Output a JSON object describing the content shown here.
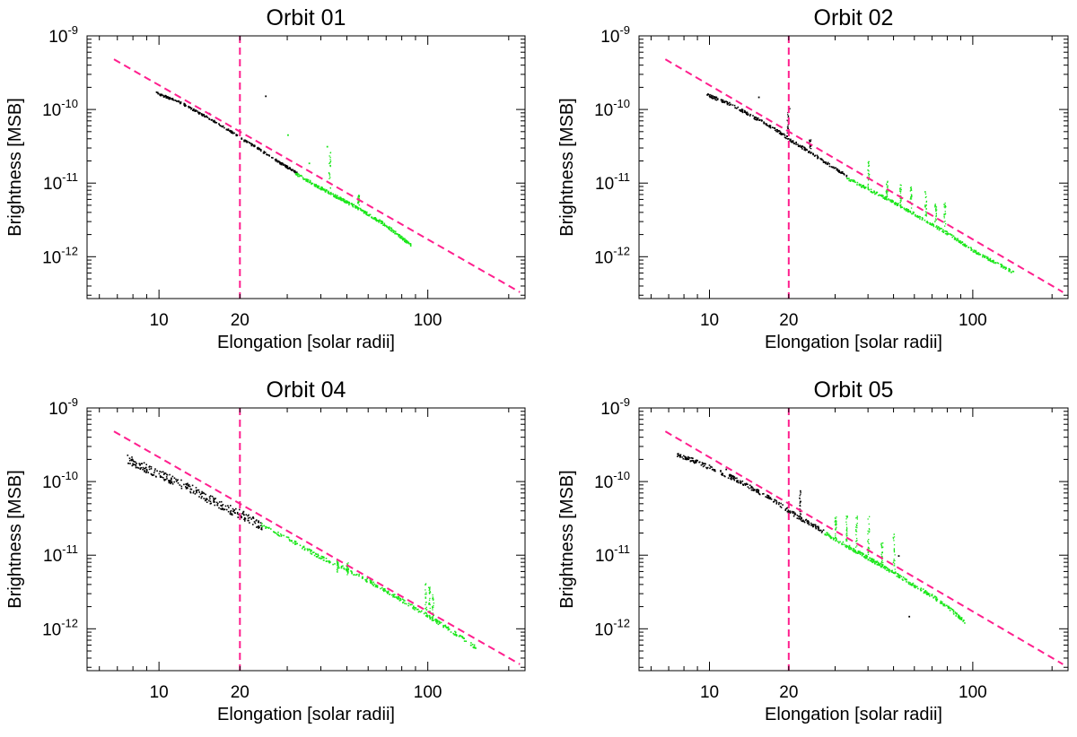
{
  "colors": {
    "fit": "#ff1f8e",
    "inner": "#000000",
    "outer": "#19e619",
    "axis": "#000000"
  },
  "common": {
    "ylabel": "Brightness [MSB]",
    "xlabel": "Elongation [solar radii]",
    "x_tick_labels": [
      "10",
      "20",
      "100"
    ],
    "y_tick_exponents": [
      "-9",
      "-10",
      "-11",
      "-12"
    ]
  },
  "chart_data": [
    {
      "type": "scatter",
      "title": "Orbit 01",
      "xlabel": "Elongation [solar radii]",
      "ylabel": "Brightness [MSB]",
      "xscale": "log",
      "yscale": "log",
      "xlim": [
        5.4,
        230
      ],
      "ylim": [
        2.7e-13,
        1e-09
      ],
      "x_ticks": [
        10,
        20,
        100
      ],
      "y_ticks": [
        1e-09,
        1e-10,
        1e-11,
        1e-12
      ],
      "fit_line": {
        "style": "dashed",
        "x": [
          6.8,
          220
        ],
        "y": [
          4.8e-10,
          3.3e-13
        ]
      },
      "threshold_x": 20,
      "series": [
        {
          "name": "inner",
          "color": "black",
          "x": [
            9.7,
            12,
            15,
            18,
            20,
            24,
            28,
            32.5
          ],
          "y": [
            1.78e-10,
            1.3e-10,
            8.3e-11,
            5.6e-11,
            4.3e-11,
            2.9e-11,
            2e-11,
            1.45e-11
          ],
          "spread": 0.03
        },
        {
          "name": "outer",
          "color": "green",
          "x": [
            32,
            40,
            50,
            60,
            70,
            80,
            87
          ],
          "y": [
            1.45e-11,
            9e-12,
            5.8e-12,
            4e-12,
            2.8e-12,
            1.9e-12,
            1.5e-12
          ],
          "spread": 0.04
        }
      ],
      "outliers": [
        {
          "x": 24.8,
          "y": 1.55e-10,
          "color": "black"
        },
        {
          "x": 15.3,
          "y": 9e-11,
          "color": "black"
        },
        {
          "x": 42,
          "y": 3.2e-11,
          "color": "green"
        },
        {
          "x": 36,
          "y": 1.9e-11,
          "color": "green"
        },
        {
          "x": 30,
          "y": 4.6e-11,
          "color": "green"
        }
      ],
      "spikes": [
        {
          "x": 43,
          "y_low": 8.5e-12,
          "y_high": 3e-11,
          "color": "green"
        },
        {
          "x": 55,
          "y_low": 5e-12,
          "y_high": 7e-12,
          "color": "green"
        }
      ]
    },
    {
      "type": "scatter",
      "title": "Orbit 02",
      "xlabel": "Elongation [solar radii]",
      "ylabel": "Brightness [MSB]",
      "xscale": "log",
      "yscale": "log",
      "xlim": [
        5.4,
        230
      ],
      "ylim": [
        2.7e-13,
        1e-09
      ],
      "x_ticks": [
        10,
        20,
        100
      ],
      "y_ticks": [
        1e-09,
        1e-10,
        1e-11,
        1e-12
      ],
      "fit_line": {
        "style": "dashed",
        "x": [
          6.8,
          220
        ],
        "y": [
          4.8e-10,
          3.3e-13
        ]
      },
      "threshold_x": 20,
      "series": [
        {
          "name": "inner",
          "color": "black",
          "x": [
            9.7,
            12,
            15,
            18,
            20,
            24,
            28,
            33
          ],
          "y": [
            1.7e-10,
            1.25e-10,
            8e-11,
            5.5e-11,
            4.2e-11,
            2.8e-11,
            1.95e-11,
            1.35e-11
          ],
          "spread": 0.04
        },
        {
          "name": "outer",
          "color": "green",
          "x": [
            33,
            40,
            50,
            60,
            70,
            80,
            100,
            120,
            143
          ],
          "y": [
            1.25e-11,
            8.8e-12,
            5.8e-12,
            4e-12,
            2.9e-12,
            2.2e-12,
            1.3e-12,
            9e-13,
            6.5e-13
          ],
          "spread": 0.04
        }
      ],
      "outliers": [
        {
          "x": 15.3,
          "y": 1.5e-10,
          "color": "black"
        },
        {
          "x": 20,
          "y": 1.05e-10,
          "color": "black"
        }
      ],
      "spikes": [
        {
          "x": 19.8,
          "y_low": 4.5e-11,
          "y_high": 9.5e-11,
          "color": "black"
        },
        {
          "x": 24,
          "y_low": 3e-11,
          "y_high": 4e-11,
          "color": "black"
        },
        {
          "x": 40,
          "y_low": 9e-12,
          "y_high": 2e-11,
          "color": "green"
        },
        {
          "x": 47,
          "y_low": 6.5e-12,
          "y_high": 1.1e-11,
          "color": "green"
        },
        {
          "x": 53,
          "y_low": 5.3e-12,
          "y_high": 1e-11,
          "color": "green"
        },
        {
          "x": 58,
          "y_low": 4.5e-12,
          "y_high": 9e-12,
          "color": "green"
        },
        {
          "x": 66,
          "y_low": 3.5e-12,
          "y_high": 8.5e-12,
          "color": "green"
        },
        {
          "x": 72,
          "y_low": 3e-12,
          "y_high": 6e-12,
          "color": "green"
        },
        {
          "x": 78,
          "y_low": 2.5e-12,
          "y_high": 5.5e-12,
          "color": "green"
        }
      ]
    },
    {
      "type": "scatter",
      "title": "Orbit 04",
      "xlabel": "Elongation [solar radii]",
      "ylabel": "Brightness [MSB]",
      "xscale": "log",
      "yscale": "log",
      "xlim": [
        5.4,
        230
      ],
      "ylim": [
        2.7e-13,
        1e-09
      ],
      "x_ticks": [
        10,
        20,
        100
      ],
      "y_ticks": [
        1e-09,
        1e-10,
        1e-11,
        1e-12
      ],
      "fit_line": {
        "style": "dashed",
        "x": [
          6.8,
          220
        ],
        "y": [
          4.8e-10,
          3.3e-13
        ]
      },
      "threshold_x": 20,
      "series": [
        {
          "name": "inner",
          "color": "black",
          "x": [
            7.5,
            9,
            11,
            13,
            15,
            18,
            20,
            24
          ],
          "y": [
            2.4e-10,
            1.75e-10,
            1.25e-10,
            9.5e-11,
            7e-11,
            5e-11,
            4.2e-11,
            2.9e-11
          ],
          "spread": 0.12
        },
        {
          "name": "outer",
          "color": "green",
          "x": [
            24,
            30,
            40,
            50,
            60,
            70,
            80,
            100,
            120,
            150
          ],
          "y": [
            2.8e-11,
            1.8e-11,
            1e-11,
            6.8e-12,
            4.8e-12,
            3.5e-12,
            2.6e-12,
            1.6e-12,
            1.05e-12,
            6e-13
          ],
          "spread": 0.05
        }
      ],
      "outliers": [
        {
          "x": 20.5,
          "y": 4e-11,
          "color": "black"
        }
      ],
      "spikes": [
        {
          "x": 46,
          "y_low": 6e-12,
          "y_high": 9e-12,
          "color": "green"
        },
        {
          "x": 50,
          "y_low": 5.5e-12,
          "y_high": 8e-12,
          "color": "green"
        },
        {
          "x": 98,
          "y_low": 1.6e-12,
          "y_high": 5.5e-12,
          "color": "green"
        },
        {
          "x": 101,
          "y_low": 1.5e-12,
          "y_high": 4e-12,
          "color": "green"
        },
        {
          "x": 104,
          "y_low": 1.4e-12,
          "y_high": 3e-12,
          "color": "green"
        }
      ]
    },
    {
      "type": "scatter",
      "title": "Orbit 05",
      "xlabel": "Elongation [solar radii]",
      "ylabel": "Brightness [MSB]",
      "xscale": "log",
      "yscale": "log",
      "xlim": [
        5.4,
        230
      ],
      "ylim": [
        2.7e-13,
        1e-09
      ],
      "x_ticks": [
        10,
        20,
        100
      ],
      "y_ticks": [
        1e-09,
        1e-10,
        1e-11,
        1e-12
      ],
      "fit_line": {
        "style": "dashed",
        "x": [
          6.8,
          220
        ],
        "y": [
          4.8e-10,
          3.3e-13
        ]
      },
      "threshold_x": 20,
      "series": [
        {
          "name": "inner",
          "color": "black",
          "x": [
            7.5,
            9,
            11,
            13,
            15,
            18,
            20,
            24,
            27
          ],
          "y": [
            2.55e-10,
            2e-10,
            1.45e-10,
            1.1e-10,
            8.2e-11,
            5.6e-11,
            4.3e-11,
            2.9e-11,
            2.3e-11
          ],
          "spread": 0.06
        },
        {
          "name": "outer",
          "color": "green",
          "x": [
            27,
            33,
            40,
            50,
            60,
            70,
            80,
            93
          ],
          "y": [
            2.2e-11,
            1.45e-11,
            9.8e-12,
            6.2e-12,
            4.1e-12,
            3e-12,
            2.1e-12,
            1.35e-12
          ],
          "spread": 0.05
        }
      ],
      "outliers": [
        {
          "x": 11.5,
          "y": 1.5e-10,
          "color": "black"
        },
        {
          "x": 52,
          "y": 1e-11,
          "color": "black"
        },
        {
          "x": 57,
          "y": 1.5e-12,
          "color": "black"
        }
      ],
      "spikes": [
        {
          "x": 22,
          "y_low": 3.5e-11,
          "y_high": 8.5e-11,
          "color": "black"
        },
        {
          "x": 30,
          "y_low": 1.8e-11,
          "y_high": 3.5e-11,
          "color": "green"
        },
        {
          "x": 33,
          "y_low": 1.5e-11,
          "y_high": 3.5e-11,
          "color": "green"
        },
        {
          "x": 36,
          "y_low": 1.3e-11,
          "y_high": 3.5e-11,
          "color": "green"
        },
        {
          "x": 40,
          "y_low": 1e-11,
          "y_high": 3.5e-11,
          "color": "green"
        },
        {
          "x": 45,
          "y_low": 8e-12,
          "y_high": 1.5e-11,
          "color": "green"
        },
        {
          "x": 50,
          "y_low": 6.5e-12,
          "y_high": 2e-11,
          "color": "green"
        }
      ]
    }
  ]
}
